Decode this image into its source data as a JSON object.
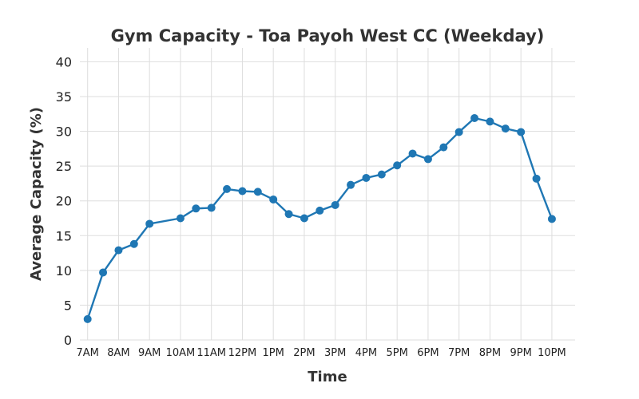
{
  "chart_data": {
    "type": "line",
    "title": "Gym Capacity - Toa Payoh West CC (Weekday)",
    "xlabel": "Time",
    "ylabel": "Average Capacity (%)",
    "ylim": [
      0,
      42
    ],
    "yticks": [
      0,
      5,
      10,
      15,
      20,
      25,
      30,
      35,
      40
    ],
    "xlim": [
      6.75,
      22.75
    ],
    "xticks": [
      {
        "value": 7,
        "label": "7AM"
      },
      {
        "value": 8,
        "label": "8AM"
      },
      {
        "value": 9,
        "label": "9AM"
      },
      {
        "value": 10,
        "label": "10AM"
      },
      {
        "value": 11,
        "label": "11AM"
      },
      {
        "value": 12,
        "label": "12PM"
      },
      {
        "value": 13,
        "label": "1PM"
      },
      {
        "value": 14,
        "label": "2PM"
      },
      {
        "value": 15,
        "label": "3PM"
      },
      {
        "value": 16,
        "label": "4PM"
      },
      {
        "value": 17,
        "label": "5PM"
      },
      {
        "value": 18,
        "label": "6PM"
      },
      {
        "value": 19,
        "label": "7PM"
      },
      {
        "value": 20,
        "label": "8PM"
      },
      {
        "value": 21,
        "label": "9PM"
      },
      {
        "value": 22,
        "label": "10PM"
      }
    ],
    "grid": true,
    "color": "#1f77b4",
    "series": [
      {
        "x": [
          7,
          7.5,
          8,
          8.5,
          9,
          10,
          10.5,
          11,
          11.5,
          12,
          12.5,
          13,
          13.5,
          14,
          14.5,
          15,
          15.5,
          16,
          16.5,
          17,
          17.5,
          18,
          18.5,
          19,
          19.5,
          20,
          20.5,
          21,
          21.5,
          22
        ],
        "y": [
          3.0,
          9.7,
          12.9,
          13.8,
          16.7,
          17.5,
          18.9,
          19.0,
          21.7,
          21.4,
          21.3,
          20.2,
          18.1,
          17.5,
          18.6,
          19.4,
          22.3,
          23.3,
          23.8,
          25.1,
          26.8,
          26.0,
          27.7,
          29.9,
          31.9,
          31.4,
          30.4,
          29.9,
          23.2,
          17.4
        ]
      }
    ]
  }
}
